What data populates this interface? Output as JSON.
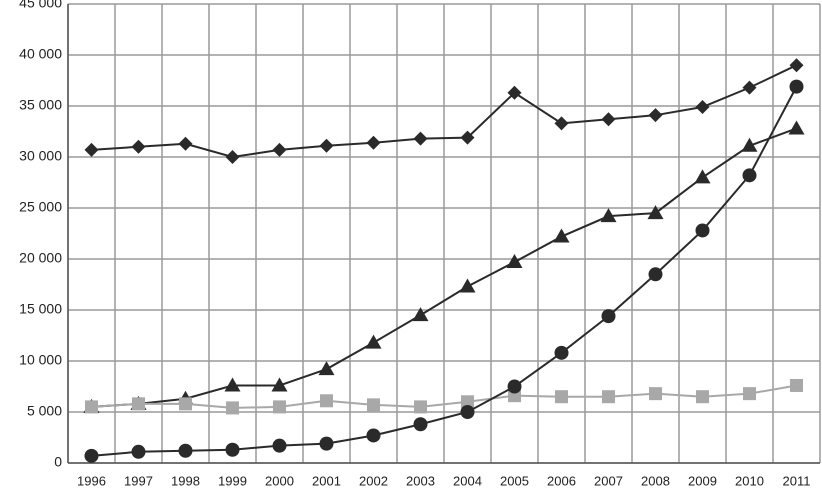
{
  "chart_data": {
    "type": "line",
    "categories": [
      "1996",
      "1997",
      "1998",
      "1999",
      "2000",
      "2001",
      "2002",
      "2003",
      "2004",
      "2005",
      "2006",
      "2007",
      "2008",
      "2009",
      "2010",
      "2011"
    ],
    "series": [
      {
        "color": "#2a2a2a",
        "marker": "diamond",
        "values": [
          30700,
          31000,
          31300,
          30000,
          30700,
          31100,
          31400,
          31800,
          31900,
          36300,
          33300,
          33700,
          34100,
          34900,
          36800,
          39000
        ]
      },
      {
        "color": "#2a2a2a",
        "marker": "triangle",
        "values": [
          5500,
          5800,
          6300,
          7600,
          7600,
          9200,
          11800,
          14500,
          17300,
          19700,
          22200,
          24200,
          24500,
          28000,
          31100,
          32800
        ]
      },
      {
        "color": "#a8a8a8",
        "marker": "square",
        "values": [
          5500,
          5800,
          5800,
          5400,
          5500,
          6100,
          5700,
          5500,
          6000,
          6600,
          6500,
          6500,
          6800,
          6500,
          6800,
          7600
        ]
      },
      {
        "color": "#2a2a2a",
        "marker": "circle",
        "values": [
          700,
          1100,
          1200,
          1300,
          1700,
          1900,
          2700,
          3800,
          5000,
          7500,
          10800,
          14400,
          18500,
          22800,
          28200,
          36900
        ]
      }
    ],
    "ylim": [
      0,
      45000
    ],
    "yticks": [
      0,
      {
        "value": 5000,
        "label": "5 000"
      },
      {
        "value": 10000,
        "label": "10 000"
      },
      {
        "value": 15000,
        "label": "15 000"
      },
      {
        "value": 20000,
        "label": "20 000"
      },
      {
        "value": 25000,
        "label": "25 000"
      },
      {
        "value": 30000,
        "label": "30 000"
      },
      {
        "value": 35000,
        "label": "35 000"
      },
      {
        "value": 40000,
        "label": "40 000"
      },
      {
        "value": 45000,
        "label": "45 000"
      }
    ],
    "grid": true
  }
}
